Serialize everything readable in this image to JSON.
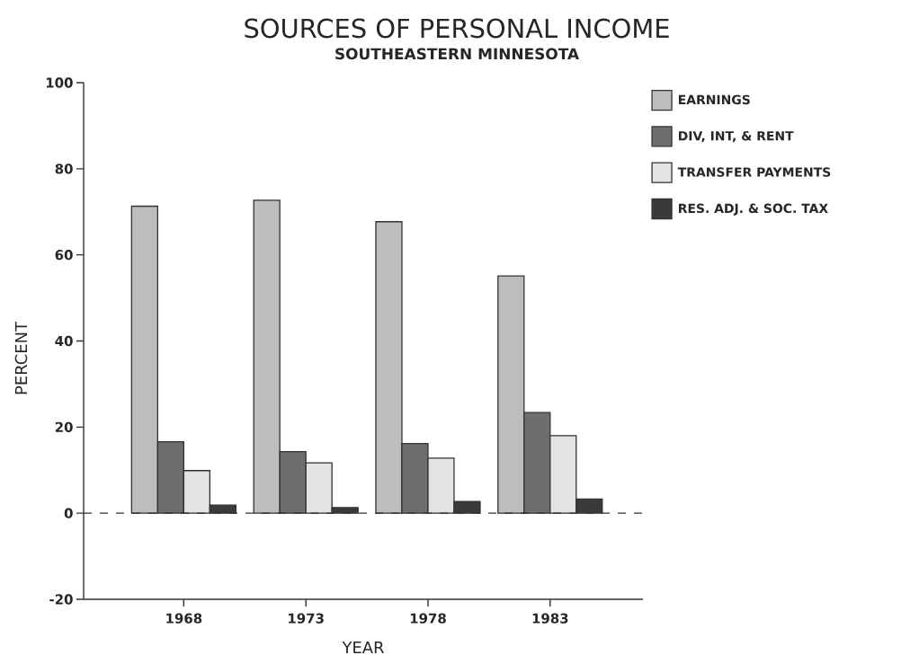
{
  "chart_data": {
    "type": "bar",
    "title": "SOURCES OF PERSONAL INCOME",
    "subtitle": "SOUTHEASTERN MINNESOTA",
    "xlabel": "YEAR",
    "ylabel": "PERCENT",
    "categories": [
      "1968",
      "1973",
      "1978",
      "1983"
    ],
    "series": [
      {
        "name": "EARNINGS",
        "color": "#bdbdbd",
        "values": [
          71.3,
          72.7,
          67.7,
          55.1
        ]
      },
      {
        "name": "DIV, INT, & RENT",
        "color": "#6e6e6e",
        "values": [
          16.6,
          14.3,
          16.2,
          23.4
        ]
      },
      {
        "name": "TRANSFER PAYMENTS",
        "color": "#e3e3e3",
        "values": [
          9.9,
          11.7,
          12.8,
          18.0
        ]
      },
      {
        "name": "RES. ADJ. & SOC. TAX",
        "color": "#3a3a3a",
        "values": [
          1.9,
          1.3,
          2.7,
          3.3
        ]
      }
    ],
    "ylim": [
      -20,
      100
    ],
    "yticks": [
      -20,
      0,
      20,
      40,
      60,
      80,
      100
    ],
    "legend": "right",
    "ref_lines": [
      {
        "axis": "y",
        "value": 0,
        "line_style": "dashed"
      }
    ]
  }
}
